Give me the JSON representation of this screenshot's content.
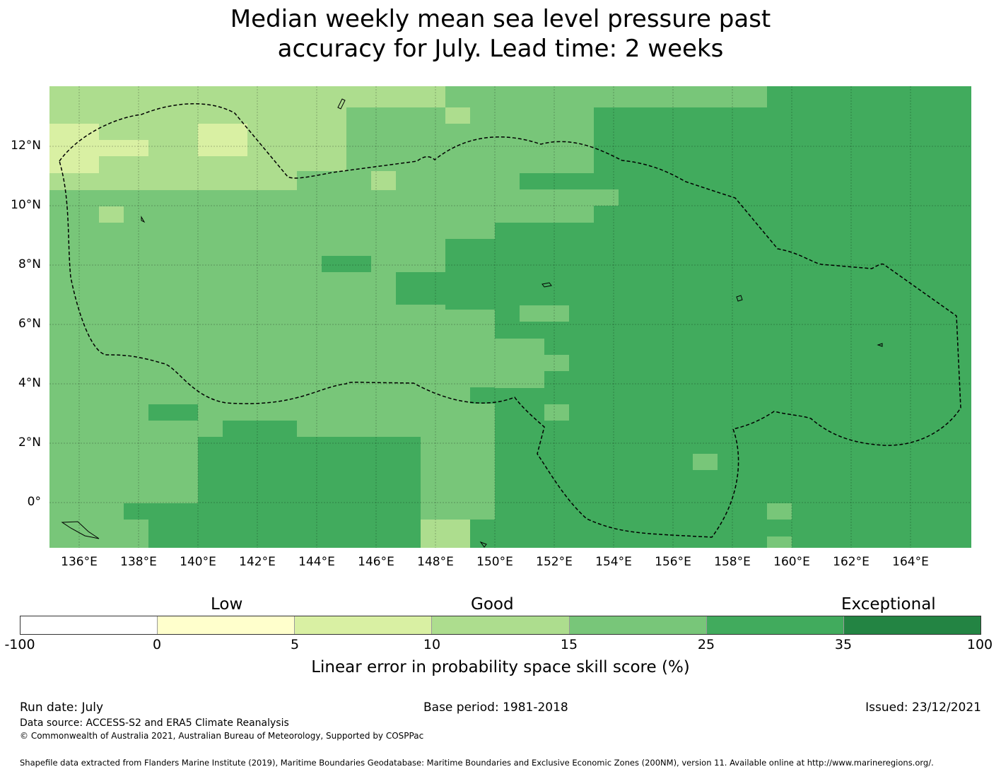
{
  "title_line1": "Median weekly mean sea level pressure past",
  "title_line2": "accuracy for July. Lead time: 2 weeks",
  "lat_labels": [
    "12°N",
    "10°N",
    "8°N",
    "6°N",
    "4°N",
    "2°N",
    "0°"
  ],
  "lon_labels": [
    "136°E",
    "138°E",
    "140°E",
    "142°E",
    "144°E",
    "146°E",
    "148°E",
    "150°E",
    "152°E",
    "154°E",
    "156°E",
    "158°E",
    "160°E",
    "162°E",
    "164°E"
  ],
  "legend": {
    "categories": [
      "Low",
      "Good",
      "Exceptional"
    ],
    "ticks": [
      "-100",
      "0",
      "5",
      "10",
      "15",
      "25",
      "35",
      "100"
    ],
    "colors": [
      "#ffffff",
      "#ffffcc",
      "#d9f0a3",
      "#addd8e",
      "#78c679",
      "#41ab5d",
      "#238443"
    ],
    "label": "Linear error in probability space skill score (%)"
  },
  "footer": {
    "run_date": "Run date: July",
    "base_period": "Base period: 1981-2018",
    "issued": "Issued: 23/12/2021",
    "data_source": "Data source: ACCESS-S2 and ERA5 Climate Reanalysis",
    "copyright": "© Commonwealth of Australia 2021, Australian Bureau of Meteorology, Supported by COSPPac",
    "shapefile": "Shapefile data extracted from Flanders Marine Institute (2019), Maritime Boundaries Geodatabase: Maritime Boundaries and Exclusive Economic Zones (200NM), version 11. Available online at http://www.marineregions.org/."
  }
}
